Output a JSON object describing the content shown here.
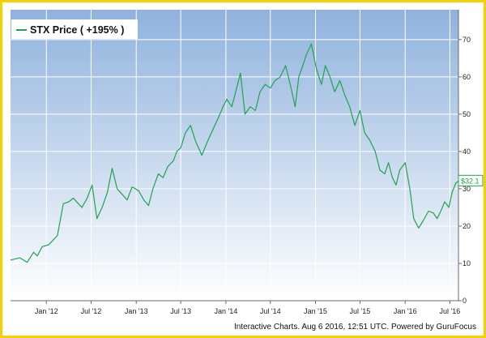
{
  "chart_data": {
    "type": "line",
    "legend": {
      "label": "STX Price ( +195% )",
      "placement": "top-left",
      "color": "#22a24f"
    },
    "y_axis": {
      "position": "right",
      "ylim": [
        0,
        78
      ],
      "ticks": [
        0,
        10,
        20,
        30,
        40,
        50,
        60,
        70
      ]
    },
    "x_axis": {
      "range": [
        "2011-08-08",
        "2016-08-05"
      ],
      "ticks": [
        {
          "date": "2012-01-01",
          "label": "Jan '12"
        },
        {
          "date": "2012-07-01",
          "label": "Jul '12"
        },
        {
          "date": "2013-01-01",
          "label": "Jan '13"
        },
        {
          "date": "2013-07-01",
          "label": "Jul '13"
        },
        {
          "date": "2014-01-01",
          "label": "Jan '14"
        },
        {
          "date": "2014-07-01",
          "label": "Jul '14"
        },
        {
          "date": "2015-01-01",
          "label": "Jan '15"
        },
        {
          "date": "2015-07-01",
          "label": "Jul '15"
        },
        {
          "date": "2016-01-01",
          "label": "Jan '16"
        },
        {
          "date": "2016-07-01",
          "label": "Jul '16"
        }
      ]
    },
    "series": [
      {
        "name": "STX Price ( +195% )",
        "color": "#22a24f",
        "x": [
          "2011-08-08",
          "2011-09-15",
          "2011-10-15",
          "2011-11-10",
          "2011-11-25",
          "2011-12-15",
          "2012-01-10",
          "2012-02-01",
          "2012-02-15",
          "2012-03-10",
          "2012-04-01",
          "2012-04-20",
          "2012-05-10",
          "2012-05-25",
          "2012-06-15",
          "2012-07-05",
          "2012-07-25",
          "2012-08-15",
          "2012-09-05",
          "2012-09-25",
          "2012-10-15",
          "2012-11-05",
          "2012-11-25",
          "2012-12-15",
          "2013-01-10",
          "2013-02-01",
          "2013-02-20",
          "2013-03-10",
          "2013-04-01",
          "2013-04-20",
          "2013-05-10",
          "2013-06-01",
          "2013-06-15",
          "2013-07-01",
          "2013-07-20",
          "2013-08-10",
          "2013-09-01",
          "2013-09-25",
          "2013-10-20",
          "2013-11-10",
          "2013-12-01",
          "2013-12-20",
          "2014-01-05",
          "2014-01-25",
          "2014-02-10",
          "2014-03-01",
          "2014-03-20",
          "2014-04-10",
          "2014-05-01",
          "2014-05-20",
          "2014-06-10",
          "2014-07-01",
          "2014-07-20",
          "2014-08-10",
          "2014-09-01",
          "2014-09-20",
          "2014-10-10",
          "2014-10-25",
          "2014-11-10",
          "2014-11-25",
          "2014-12-15",
          "2015-01-05",
          "2015-01-25",
          "2015-02-10",
          "2015-03-01",
          "2015-03-20",
          "2015-04-10",
          "2015-05-01",
          "2015-05-20",
          "2015-06-10",
          "2015-07-01",
          "2015-07-20",
          "2015-08-10",
          "2015-09-01",
          "2015-09-20",
          "2015-10-10",
          "2015-10-25",
          "2015-11-10",
          "2015-11-25",
          "2015-12-10",
          "2016-01-01",
          "2016-01-20",
          "2016-02-05",
          "2016-02-25",
          "2016-03-15",
          "2016-04-05",
          "2016-04-25",
          "2016-05-10",
          "2016-05-25",
          "2016-06-10",
          "2016-06-27",
          "2016-07-10",
          "2016-07-25",
          "2016-08-05"
        ],
        "values": [
          10.9,
          11.5,
          10.3,
          13.0,
          12.0,
          14.5,
          15.0,
          16.5,
          17.5,
          26.0,
          26.5,
          27.5,
          26.0,
          25.0,
          27.5,
          31.0,
          22.0,
          25.0,
          29.0,
          35.5,
          30.0,
          28.5,
          27.0,
          30.5,
          29.5,
          27.0,
          25.5,
          30.0,
          34.0,
          33.0,
          36.0,
          37.5,
          40.0,
          41.0,
          45.0,
          47.0,
          42.5,
          39.0,
          43.0,
          46.0,
          49.0,
          52.0,
          54.0,
          52.0,
          56.0,
          61.0,
          50.0,
          52.0,
          51.0,
          56.0,
          58.0,
          57.0,
          59.0,
          60.0,
          63.0,
          58.0,
          52.0,
          60.0,
          63.0,
          66.0,
          68.8,
          62.0,
          58.0,
          63.0,
          60.0,
          56.0,
          59.0,
          55.0,
          52.0,
          47.0,
          51.0,
          45.0,
          43.0,
          40.0,
          35.0,
          34.0,
          37.0,
          33.0,
          31.0,
          35.0,
          37.0,
          30.0,
          22.0,
          19.5,
          21.5,
          24.0,
          23.5,
          22.0,
          24.0,
          26.5,
          25.0,
          29.0,
          31.5,
          32.1
        ]
      }
    ],
    "last_value_label": "$32.1",
    "credit": "Interactive Charts. Aug 6 2016, 12:51 UTC. Powered by GuruFocus",
    "grid": true,
    "colors": {
      "plot_top": "#8fb2dd",
      "plot_bottom": "#ffffff",
      "grid": "#ffffff",
      "frame": "#f2d200",
      "axis": "#6a6a6a",
      "legend_bg": "#ffffff"
    }
  }
}
